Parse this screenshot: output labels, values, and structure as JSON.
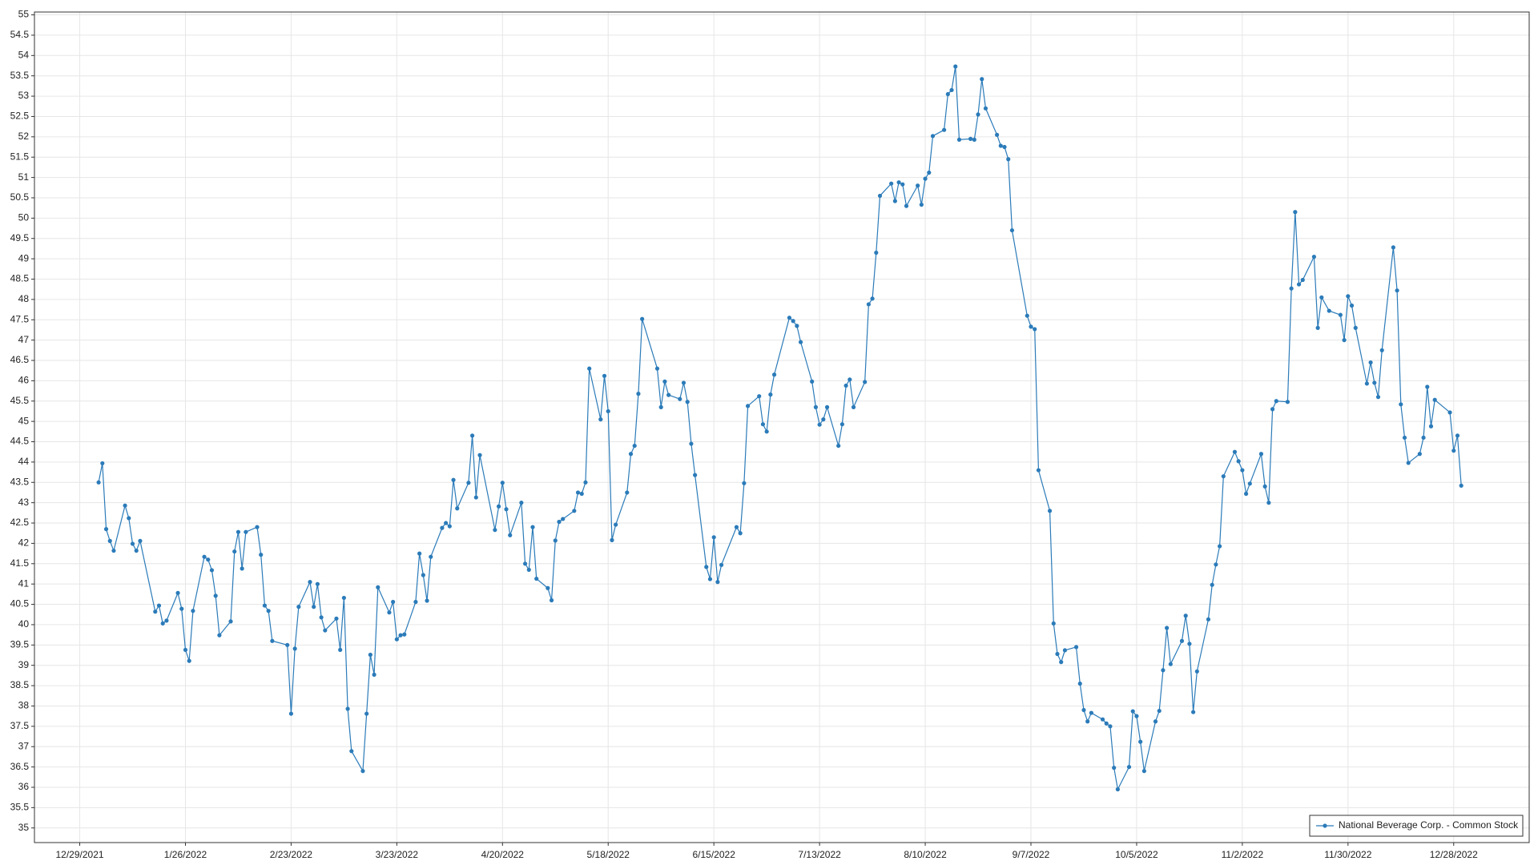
{
  "chart_data": {
    "type": "line",
    "x": [
      "1/3/2022",
      "1/4/2022",
      "1/5/2022",
      "1/6/2022",
      "1/7/2022",
      "1/10/2022",
      "1/11/2022",
      "1/12/2022",
      "1/13/2022",
      "1/14/2022",
      "1/18/2022",
      "1/19/2022",
      "1/20/2022",
      "1/21/2022",
      "1/24/2022",
      "1/25/2022",
      "1/26/2022",
      "1/27/2022",
      "1/28/2022",
      "1/31/2022",
      "2/1/2022",
      "2/2/2022",
      "2/3/2022",
      "2/4/2022",
      "2/7/2022",
      "2/8/2022",
      "2/9/2022",
      "2/10/2022",
      "2/11/2022",
      "2/14/2022",
      "2/15/2022",
      "2/16/2022",
      "2/17/2022",
      "2/18/2022",
      "2/22/2022",
      "2/23/2022",
      "2/24/2022",
      "2/25/2022",
      "2/28/2022",
      "3/1/2022",
      "3/2/2022",
      "3/3/2022",
      "3/4/2022",
      "3/7/2022",
      "3/8/2022",
      "3/9/2022",
      "3/10/2022",
      "3/11/2022",
      "3/14/2022",
      "3/15/2022",
      "3/16/2022",
      "3/17/2022",
      "3/18/2022",
      "3/21/2022",
      "3/22/2022",
      "3/23/2022",
      "3/24/2022",
      "3/25/2022",
      "3/28/2022",
      "3/29/2022",
      "3/30/2022",
      "3/31/2022",
      "4/1/2022",
      "4/4/2022",
      "4/5/2022",
      "4/6/2022",
      "4/7/2022",
      "4/8/2022",
      "4/11/2022",
      "4/12/2022",
      "4/13/2022",
      "4/14/2022",
      "4/18/2022",
      "4/19/2022",
      "4/20/2022",
      "4/21/2022",
      "4/22/2022",
      "4/25/2022",
      "4/26/2022",
      "4/27/2022",
      "4/28/2022",
      "4/29/2022",
      "5/2/2022",
      "5/3/2022",
      "5/4/2022",
      "5/5/2022",
      "5/6/2022",
      "5/9/2022",
      "5/10/2022",
      "5/11/2022",
      "5/12/2022",
      "5/13/2022",
      "5/16/2022",
      "5/17/2022",
      "5/18/2022",
      "5/19/2022",
      "5/20/2022",
      "5/23/2022",
      "5/24/2022",
      "5/25/2022",
      "5/26/2022",
      "5/27/2022",
      "5/31/2022",
      "6/1/2022",
      "6/2/2022",
      "6/3/2022",
      "6/6/2022",
      "6/7/2022",
      "6/8/2022",
      "6/9/2022",
      "6/10/2022",
      "6/13/2022",
      "6/14/2022",
      "6/15/2022",
      "6/16/2022",
      "6/17/2022",
      "6/21/2022",
      "6/22/2022",
      "6/23/2022",
      "6/24/2022",
      "6/27/2022",
      "6/28/2022",
      "6/29/2022",
      "6/30/2022",
      "7/1/2022",
      "7/5/2022",
      "7/6/2022",
      "7/7/2022",
      "7/8/2022",
      "7/11/2022",
      "7/12/2022",
      "7/13/2022",
      "7/14/2022",
      "7/15/2022",
      "7/18/2022",
      "7/19/2022",
      "7/20/2022",
      "7/21/2022",
      "7/22/2022",
      "7/25/2022",
      "7/26/2022",
      "7/27/2022",
      "7/28/2022",
      "7/29/2022",
      "8/1/2022",
      "8/2/2022",
      "8/3/2022",
      "8/4/2022",
      "8/5/2022",
      "8/8/2022",
      "8/9/2022",
      "8/10/2022",
      "8/11/2022",
      "8/12/2022",
      "8/15/2022",
      "8/16/2022",
      "8/17/2022",
      "8/18/2022",
      "8/19/2022",
      "8/22/2022",
      "8/23/2022",
      "8/24/2022",
      "8/25/2022",
      "8/26/2022",
      "8/29/2022",
      "8/30/2022",
      "8/31/2022",
      "9/1/2022",
      "9/2/2022",
      "9/6/2022",
      "9/7/2022",
      "9/8/2022",
      "9/9/2022",
      "9/12/2022",
      "9/13/2022",
      "9/14/2022",
      "9/15/2022",
      "9/16/2022",
      "9/19/2022",
      "9/20/2022",
      "9/21/2022",
      "9/22/2022",
      "9/23/2022",
      "9/26/2022",
      "9/27/2022",
      "9/28/2022",
      "9/29/2022",
      "9/30/2022",
      "10/3/2022",
      "10/4/2022",
      "10/5/2022",
      "10/6/2022",
      "10/7/2022",
      "10/10/2022",
      "10/11/2022",
      "10/12/2022",
      "10/13/2022",
      "10/14/2022",
      "10/17/2022",
      "10/18/2022",
      "10/19/2022",
      "10/20/2022",
      "10/21/2022",
      "10/24/2022",
      "10/25/2022",
      "10/26/2022",
      "10/27/2022",
      "10/28/2022",
      "10/31/2022",
      "11/1/2022",
      "11/2/2022",
      "11/3/2022",
      "11/4/2022",
      "11/7/2022",
      "11/8/2022",
      "11/9/2022",
      "11/10/2022",
      "11/11/2022",
      "11/14/2022",
      "11/15/2022",
      "11/16/2022",
      "11/17/2022",
      "11/18/2022",
      "11/21/2022",
      "11/22/2022",
      "11/23/2022",
      "11/25/2022",
      "11/28/2022",
      "11/29/2022",
      "11/30/2022",
      "12/1/2022",
      "12/2/2022",
      "12/5/2022",
      "12/6/2022",
      "12/7/2022",
      "12/8/2022",
      "12/9/2022",
      "12/12/2022",
      "12/13/2022",
      "12/14/2022",
      "12/15/2022",
      "12/16/2022",
      "12/19/2022",
      "12/20/2022",
      "12/21/2022",
      "12/22/2022",
      "12/23/2022",
      "12/27/2022",
      "12/28/2022",
      "12/29/2022",
      "12/30/2022"
    ],
    "series": [
      {
        "name": "National Beverage Corp. - Common Stock",
        "color": "#2b7bb9",
        "values": [
          43.5,
          43.97,
          42.35,
          42.06,
          41.82,
          42.93,
          42.62,
          41.99,
          41.82,
          42.06,
          40.32,
          40.47,
          40.03,
          40.1,
          40.78,
          40.39,
          39.38,
          39.11,
          40.34,
          41.67,
          41.6,
          41.34,
          40.71,
          39.74,
          40.08,
          41.8,
          42.28,
          41.38,
          42.28,
          42.4,
          41.72,
          40.47,
          40.34,
          39.6,
          39.5,
          37.81,
          39.41,
          40.44,
          41.05,
          40.44,
          41.0,
          40.18,
          39.86,
          40.15,
          39.38,
          40.66,
          37.93,
          36.89,
          36.4,
          37.81,
          39.26,
          38.77,
          40.92,
          40.3,
          40.56,
          39.64,
          39.74,
          39.76,
          40.56,
          41.75,
          41.22,
          40.59,
          41.67,
          42.38,
          42.5,
          42.42,
          43.56,
          42.86,
          43.49,
          44.65,
          43.13,
          44.17,
          42.33,
          42.91,
          43.49,
          42.84,
          42.2,
          43.0,
          41.5,
          41.35,
          42.4,
          41.13,
          40.9,
          40.6,
          42.07,
          42.53,
          42.6,
          42.8,
          43.25,
          43.22,
          43.5,
          46.3,
          45.05,
          46.12,
          45.25,
          42.08,
          42.46,
          43.25,
          44.2,
          44.4,
          45.68,
          47.52,
          46.3,
          45.35,
          45.98,
          45.65,
          45.55,
          45.95,
          45.48,
          44.45,
          43.68,
          41.42,
          41.12,
          42.15,
          41.05,
          41.47,
          42.4,
          42.25,
          43.48,
          45.38,
          45.62,
          44.93,
          44.75,
          45.66,
          46.15,
          47.55,
          47.47,
          47.35,
          46.95,
          45.98,
          45.35,
          44.92,
          45.05,
          45.35,
          44.4,
          44.93,
          45.88,
          46.03,
          45.35,
          45.97,
          47.88,
          48.02,
          49.15,
          50.55,
          50.85,
          50.42,
          50.88,
          50.83,
          50.3,
          50.8,
          50.33,
          50.97,
          51.12,
          52.02,
          52.17,
          53.05,
          53.15,
          53.73,
          51.93,
          51.95,
          51.93,
          52.55,
          53.42,
          52.7,
          52.05,
          51.78,
          51.75,
          51.45,
          49.7,
          47.6,
          47.33,
          47.27,
          43.8,
          42.8,
          40.03,
          39.28,
          39.08,
          39.37,
          39.45,
          38.55,
          37.9,
          37.62,
          37.83,
          37.67,
          37.57,
          37.5,
          36.48,
          35.95,
          36.5,
          37.87,
          37.75,
          37.12,
          36.4,
          37.62,
          37.88,
          38.88,
          39.92,
          39.03,
          39.6,
          40.22,
          39.53,
          37.85,
          38.85,
          40.13,
          40.98,
          41.48,
          41.93,
          43.65,
          44.25,
          44.02,
          43.8,
          43.22,
          43.47,
          44.2,
          43.4,
          43.0,
          45.3,
          45.5,
          45.48,
          48.27,
          50.15,
          48.37,
          48.48,
          49.05,
          47.3,
          48.05,
          47.72,
          47.62,
          47.0,
          48.08,
          47.85,
          47.3,
          45.93,
          46.45,
          45.95,
          45.6,
          46.75,
          49.28,
          48.22,
          45.42,
          44.6,
          43.98,
          44.2,
          44.6,
          45.85,
          44.88,
          45.53,
          45.22,
          44.28,
          44.65,
          43.42
        ]
      }
    ],
    "xlim": [
      "12/17/2021",
      "1/17/2023"
    ],
    "xticks": [
      "12/29/2021",
      "1/26/2022",
      "2/23/2022",
      "3/23/2022",
      "4/20/2022",
      "5/18/2022",
      "6/15/2022",
      "7/13/2022",
      "8/10/2022",
      "9/7/2022",
      "10/5/2022",
      "11/2/2022",
      "11/30/2022",
      "12/28/2022"
    ],
    "ylim": [
      34.64,
      55.07
    ],
    "yticks": [
      35,
      35.5,
      36,
      36.5,
      37,
      37.5,
      38,
      38.5,
      39,
      39.5,
      40,
      40.5,
      41,
      41.5,
      42,
      42.5,
      43,
      43.5,
      44,
      44.5,
      45,
      45.5,
      46,
      46.5,
      47,
      47.5,
      48,
      48.5,
      49,
      49.5,
      50,
      50.5,
      51,
      51.5,
      52,
      52.5,
      53,
      53.5,
      54,
      54.5,
      55
    ],
    "grid": true,
    "legend": "lower right"
  }
}
